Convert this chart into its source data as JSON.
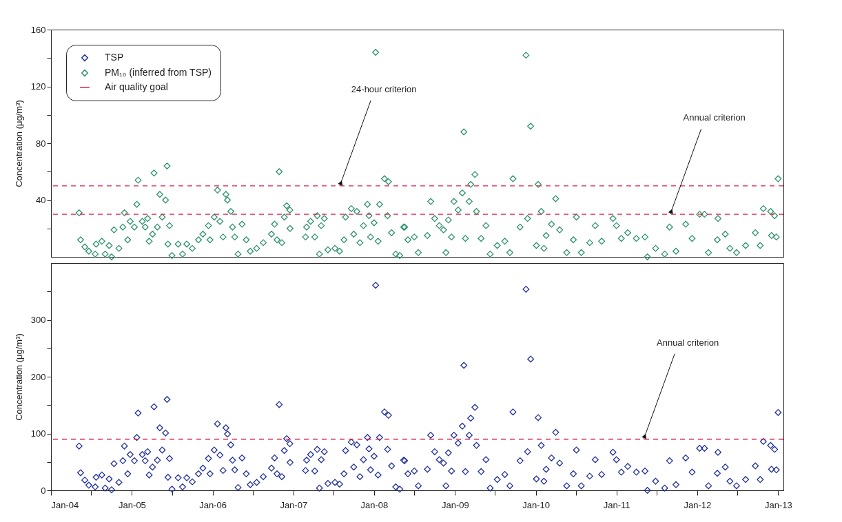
{
  "chart_data": [
    {
      "type": "scatter",
      "ylabel": "Concentration (μg/m³)",
      "legend": "top left",
      "marker": "diamond",
      "tick_labels": "y",
      "grid": false,
      "xlim": [
        "2004-01-01",
        "2013-01-25"
      ],
      "ylim": [
        0,
        160
      ],
      "yticks": [
        {
          "value": 20,
          "label": null
        },
        40,
        {
          "value": 60,
          "label": null
        },
        80,
        {
          "value": 100,
          "label": null
        },
        120,
        {
          "value": 140,
          "label": null
        },
        160
      ],
      "x": [
        "2004-05-07",
        "2004-05-14",
        "2004-06-02",
        "2004-06-20",
        "2004-07-19",
        "2004-07-23",
        "2004-08-18",
        "2004-09-02",
        "2004-09-20",
        "2004-10-01",
        "2004-10-12",
        "2004-11-03",
        "2004-11-21",
        "2004-11-28",
        "2004-12-13",
        "2004-12-24",
        "2005-01-12",
        "2005-01-23",
        "2005-01-29",
        "2005-02-17",
        "2005-03-02",
        "2005-03-13",
        "2005-03-20",
        "2005-04-04",
        "2005-04-11",
        "2005-04-26",
        "2005-05-07",
        "2005-05-18",
        "2005-06-02",
        "2005-06-09",
        "2005-06-20",
        "2005-06-13",
        "2005-07-01",
        "2005-07-29",
        "2005-08-18",
        "2005-09-06",
        "2005-10-01",
        "2005-10-29",
        "2005-11-18",
        "2005-12-13",
        "2005-12-20",
        "2006-01-08",
        "2006-01-23",
        "2006-02-03",
        "2006-02-17",
        "2006-03-02",
        "2006-03-09",
        "2006-03-24",
        "2006-04-01",
        "2006-04-11",
        "2006-04-26",
        "2006-05-14",
        "2006-06-02",
        "2006-06-20",
        "2006-07-19",
        "2006-08-18",
        "2006-09-24",
        "2006-10-08",
        "2006-10-19",
        "2006-10-29",
        "2006-11-10",
        "2006-11-21",
        "2006-12-02",
        "2006-12-16",
        "2006-12-17",
        "2007-02-25",
        "2007-03-02",
        "2007-03-20",
        "2007-04-08",
        "2007-04-19",
        "2007-04-29",
        "2007-05-07",
        "2007-05-21",
        "2007-06-06",
        "2007-07-08",
        "2007-07-29",
        "2007-08-18",
        "2007-08-25",
        "2007-09-20",
        "2007-10-01",
        "2007-10-15",
        "2007-10-29",
        "2007-11-14",
        "2007-12-02",
        "2007-12-09",
        "2007-12-16",
        "2008-01-01",
        "2008-01-08",
        "2008-01-19",
        "2008-01-26",
        "2008-02-17",
        "2008-03-06",
        "2008-03-02",
        "2008-03-20",
        "2008-04-08",
        "2008-04-26",
        "2008-05-14",
        "2008-06-02",
        "2008-05-18",
        "2008-07-01",
        "2008-07-19",
        "2008-08-29",
        "2008-09-13",
        "2008-10-01",
        "2008-10-22",
        "2008-11-10",
        "2008-11-21",
        "2008-12-02",
        "2008-12-16",
        "2008-12-27",
        "2009-01-15",
        "2009-02-03",
        "2009-02-10",
        "2009-02-17",
        "2009-03-06",
        "2009-03-13",
        "2009-04-01",
        "2009-04-08",
        "2009-04-29",
        "2009-05-21",
        "2009-06-09",
        "2009-07-11",
        "2009-08-14",
        "2009-09-06",
        "2009-09-20",
        "2009-10-22",
        "2009-11-18",
        "2009-11-25",
        "2009-12-09",
        "2010-01-04",
        "2010-01-12",
        "2010-01-26",
        "2010-02-07",
        "2010-02-17",
        "2010-03-13",
        "2010-04-01",
        "2010-04-19",
        "2010-05-21",
        "2010-06-20",
        "2010-07-04",
        "2010-07-26",
        "2010-09-02",
        "2010-09-27",
        "2010-10-26",
        "2010-12-16",
        "2011-01-01",
        "2011-01-23",
        "2011-02-21",
        "2011-04-01",
        "2011-05-10",
        "2011-05-21",
        "2011-06-27",
        "2011-08-07",
        "2011-08-29",
        "2011-09-27",
        "2011-11-10",
        "2011-12-09",
        "2012-01-12",
        "2012-02-03",
        "2012-02-21",
        "2012-04-01",
        "2012-04-04",
        "2012-05-07",
        "2012-05-28",
        "2012-06-27",
        "2012-08-07",
        "2012-09-20",
        "2012-10-12",
        "2012-10-26",
        "2012-11-28",
        "2012-12-02",
        "2012-12-16",
        "2012-12-24",
        "2013-01-01"
      ],
      "series": [
        {
          "name": "PM₁₀ (inferred from TSP)",
          "color": "#2e9468",
          "values": [
            31,
            12,
            7,
            4,
            2,
            9,
            11,
            2,
            8,
            0,
            19,
            6,
            21,
            31,
            12,
            25,
            21,
            37,
            54,
            25,
            21,
            27,
            11,
            16,
            59,
            21,
            44,
            28,
            40,
            64,
            22,
            9,
            1,
            9,
            2,
            9,
            6,
            12,
            16,
            22,
            12,
            28,
            47,
            25,
            14,
            44,
            40,
            32,
            21,
            14,
            2,
            23,
            12,
            4,
            6,
            10,
            16,
            23,
            12,
            60,
            10,
            28,
            36,
            33,
            20,
            14,
            21,
            25,
            14,
            29,
            2,
            22,
            27,
            5,
            6,
            4,
            12,
            28,
            34,
            16,
            32,
            10,
            22,
            37,
            29,
            14,
            24,
            144,
            11,
            37,
            55,
            53,
            29,
            17,
            2,
            1,
            21,
            12,
            21,
            14,
            3,
            15,
            39,
            27,
            22,
            19,
            3,
            26,
            14,
            39,
            33,
            45,
            88,
            13,
            39,
            51,
            58,
            32,
            13,
            22,
            2,
            8,
            11,
            3,
            55,
            21,
            142,
            27,
            92,
            8,
            51,
            32,
            6,
            15,
            23,
            41,
            19,
            3,
            12,
            28,
            3,
            10,
            22,
            11,
            27,
            22,
            13,
            17,
            13,
            14,
            0,
            6,
            2,
            21,
            4,
            23,
            13,
            30,
            30,
            3,
            12,
            27,
            16,
            6,
            3,
            8,
            17,
            8,
            34,
            32,
            15,
            29,
            14,
            55
          ]
        }
      ],
      "ref_lines": [
        {
          "axis": "y",
          "value": 50,
          "label": "Air quality goal",
          "color": "#e0204a",
          "line_style": "dashed"
        },
        {
          "axis": "y",
          "value": 30,
          "color": "#e0204a",
          "line_style": "dashed"
        }
      ],
      "annotations": [
        {
          "text": "24-hour criterion",
          "x": "2007-07-30",
          "y": 50
        },
        {
          "text": "Annual criterion",
          "x": "2011-09-01",
          "y": 30
        }
      ]
    },
    {
      "type": "scatter",
      "ylabel": "Concentration (μg/m³)",
      "marker": "diamond",
      "grid": false,
      "xlim": [
        "2004-01-01",
        "2013-01-25"
      ],
      "ylim": [
        0,
        400
      ],
      "xticks": [
        {
          "value": "2004-01",
          "label": "Jan-04"
        },
        {
          "value": "2004-07",
          "label": null
        },
        {
          "value": "2005-01",
          "label": "Jan-05"
        },
        {
          "value": "2005-07",
          "label": null
        },
        {
          "value": "2006-01",
          "label": "Jan-06"
        },
        {
          "value": "2006-07",
          "label": null
        },
        {
          "value": "2007-01",
          "label": "Jan-07"
        },
        {
          "value": "2007-07",
          "label": null
        },
        {
          "value": "2008-01",
          "label": "Jan-08"
        },
        {
          "value": "2008-07",
          "label": null
        },
        {
          "value": "2009-01",
          "label": "Jan-09"
        },
        {
          "value": "2009-07",
          "label": null
        },
        {
          "value": "2010-01",
          "label": "Jan-10"
        },
        {
          "value": "2010-07",
          "label": null
        },
        {
          "value": "2011-01",
          "label": "Jan-11"
        },
        {
          "value": "2011-07",
          "label": null
        },
        {
          "value": "2012-01",
          "label": "Jan-12"
        },
        {
          "value": "2012-07",
          "label": null
        },
        {
          "value": "2013-01",
          "label": "Jan-13"
        }
      ],
      "yticks": [
        0,
        {
          "value": 50,
          "label": null
        },
        100,
        {
          "value": 150,
          "label": null
        },
        200,
        {
          "value": 250,
          "label": null
        },
        300,
        {
          "value": 350,
          "label": null
        }
      ],
      "x": [
        "2004-05-07",
        "2004-05-14",
        "2004-06-02",
        "2004-06-20",
        "2004-07-19",
        "2004-07-23",
        "2004-08-18",
        "2004-09-02",
        "2004-09-20",
        "2004-10-01",
        "2004-10-12",
        "2004-11-03",
        "2004-11-21",
        "2004-11-28",
        "2004-12-13",
        "2004-12-24",
        "2005-01-12",
        "2005-01-23",
        "2005-01-29",
        "2005-02-17",
        "2005-03-02",
        "2005-03-13",
        "2005-03-20",
        "2005-04-04",
        "2005-04-11",
        "2005-04-26",
        "2005-05-07",
        "2005-05-18",
        "2005-06-02",
        "2005-06-09",
        "2005-06-20",
        "2005-06-13",
        "2005-07-01",
        "2005-07-29",
        "2005-08-18",
        "2005-09-06",
        "2005-10-01",
        "2005-10-29",
        "2005-11-18",
        "2005-12-13",
        "2005-12-20",
        "2006-01-08",
        "2006-01-23",
        "2006-02-03",
        "2006-02-17",
        "2006-03-02",
        "2006-03-09",
        "2006-03-24",
        "2006-04-01",
        "2006-04-11",
        "2006-04-26",
        "2006-05-14",
        "2006-06-02",
        "2006-06-20",
        "2006-07-19",
        "2006-08-18",
        "2006-09-24",
        "2006-10-08",
        "2006-10-19",
        "2006-10-29",
        "2006-11-10",
        "2006-11-21",
        "2006-12-02",
        "2006-12-16",
        "2006-12-17",
        "2007-02-25",
        "2007-03-02",
        "2007-03-20",
        "2007-04-08",
        "2007-04-19",
        "2007-04-29",
        "2007-05-07",
        "2007-05-21",
        "2007-06-06",
        "2007-07-08",
        "2007-07-29",
        "2007-08-18",
        "2007-08-25",
        "2007-09-20",
        "2007-10-01",
        "2007-10-15",
        "2007-10-29",
        "2007-11-14",
        "2007-12-02",
        "2007-12-09",
        "2007-12-16",
        "2008-01-01",
        "2008-01-08",
        "2008-01-19",
        "2008-01-26",
        "2008-02-17",
        "2008-03-06",
        "2008-03-02",
        "2008-03-20",
        "2008-04-08",
        "2008-04-26",
        "2008-05-14",
        "2008-06-02",
        "2008-05-18",
        "2008-07-01",
        "2008-07-19",
        "2008-08-29",
        "2008-09-13",
        "2008-10-01",
        "2008-10-22",
        "2008-11-10",
        "2008-11-21",
        "2008-12-02",
        "2008-12-16",
        "2008-12-27",
        "2009-01-15",
        "2009-02-03",
        "2009-02-10",
        "2009-02-17",
        "2009-03-06",
        "2009-03-13",
        "2009-04-01",
        "2009-04-08",
        "2009-04-29",
        "2009-05-21",
        "2009-06-09",
        "2009-07-11",
        "2009-08-14",
        "2009-09-06",
        "2009-09-20",
        "2009-10-22",
        "2009-11-18",
        "2009-11-25",
        "2009-12-09",
        "2010-01-04",
        "2010-01-12",
        "2010-01-26",
        "2010-02-07",
        "2010-02-17",
        "2010-03-13",
        "2010-04-01",
        "2010-04-19",
        "2010-05-21",
        "2010-06-20",
        "2010-07-04",
        "2010-07-26",
        "2010-09-02",
        "2010-09-27",
        "2010-10-26",
        "2010-12-16",
        "2011-01-01",
        "2011-01-23",
        "2011-02-21",
        "2011-04-01",
        "2011-05-10",
        "2011-05-21",
        "2011-06-27",
        "2011-08-07",
        "2011-08-29",
        "2011-09-27",
        "2011-11-10",
        "2011-12-09",
        "2012-01-12",
        "2012-02-03",
        "2012-02-21",
        "2012-04-01",
        "2012-04-04",
        "2012-05-07",
        "2012-05-28",
        "2012-06-27",
        "2012-08-07",
        "2012-09-20",
        "2012-10-12",
        "2012-10-26",
        "2012-11-28",
        "2012-12-02",
        "2012-12-16",
        "2012-12-24",
        "2013-01-01"
      ],
      "series": [
        {
          "name": "TSP",
          "color": "#22329c",
          "values": [
            78,
            31,
            18,
            9,
            6,
            23,
            27,
            4,
            20,
            1,
            47,
            14,
            52,
            78,
            29,
            63,
            52,
            93,
            136,
            63,
            52,
            68,
            27,
            41,
            147,
            53,
            110,
            71,
            101,
            160,
            56,
            23,
            2,
            22,
            6,
            22,
            15,
            29,
            39,
            56,
            29,
            71,
            117,
            62,
            35,
            110,
            99,
            80,
            53,
            36,
            5,
            57,
            29,
            10,
            14,
            24,
            39,
            57,
            29,
            151,
            24,
            70,
            91,
            82,
            49,
            35,
            53,
            63,
            34,
            72,
            4,
            54,
            68,
            12,
            14,
            11,
            29,
            70,
            85,
            41,
            80,
            24,
            54,
            93,
            73,
            36,
            60,
            361,
            27,
            93,
            138,
            132,
            72,
            43,
            6,
            2,
            53,
            29,
            52,
            34,
            8,
            37,
            97,
            68,
            54,
            48,
            8,
            66,
            34,
            97,
            83,
            113,
            220,
            33,
            97,
            127,
            146,
            79,
            33,
            54,
            4,
            19,
            28,
            8,
            138,
            52,
            354,
            68,
            231,
            20,
            128,
            79,
            16,
            37,
            57,
            102,
            48,
            8,
            29,
            71,
            8,
            25,
            54,
            28,
            67,
            54,
            32,
            42,
            32,
            34,
            0,
            16,
            4,
            52,
            10,
            57,
            32,
            74,
            74,
            8,
            30,
            67,
            41,
            16,
            8,
            19,
            43,
            19,
            86,
            79,
            37,
            72,
            36,
            137
          ]
        }
      ],
      "ref_lines": [
        {
          "axis": "y",
          "value": 90,
          "color": "#e0204a",
          "line_style": "dashed"
        }
      ],
      "annotations": [
        {
          "text": "Annual criterion",
          "x": "2011-05-04",
          "y": 90
        }
      ]
    }
  ]
}
